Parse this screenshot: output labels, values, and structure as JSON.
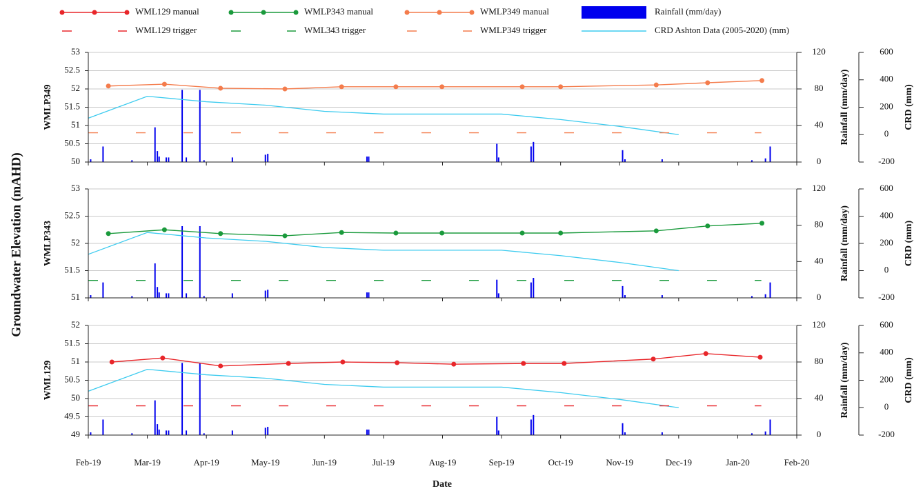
{
  "chart_data": {
    "type": "line",
    "y_label": "Groundwater Elevation (mAHD)",
    "x_label": "Date",
    "xlim": [
      0,
      12
    ],
    "xticks": [
      {
        "value": 0,
        "label": "Feb-19"
      },
      {
        "value": 1,
        "label": "Mar-19"
      },
      {
        "value": 2,
        "label": "Apr-19"
      },
      {
        "value": 3,
        "label": "May-19"
      },
      {
        "value": 4,
        "label": "Jun-19"
      },
      {
        "value": 5,
        "label": "Jul-19"
      },
      {
        "value": 6,
        "label": "Aug-19"
      },
      {
        "value": 7,
        "label": "Sep-19"
      },
      {
        "value": 8,
        "label": "Oct-19"
      },
      {
        "value": 9,
        "label": "Nov-19"
      },
      {
        "value": 10,
        "label": "Dec-19"
      },
      {
        "value": 11,
        "label": "Jan-20"
      },
      {
        "value": 12,
        "label": "Feb-20"
      }
    ],
    "y2_label": "Rainfall (mm/day)",
    "y2lim": [
      0,
      120
    ],
    "y2ticks": [
      0,
      40,
      80,
      120
    ],
    "y3_label": "CRD (mm)",
    "y3lim": [
      -200,
      600
    ],
    "y3ticks": [
      -200,
      0,
      200,
      400,
      600
    ],
    "grid": true,
    "rainfall": {
      "name": "Rainfall (mm/day)",
      "color": "#0000ee",
      "x": [
        0.04,
        0.25,
        0.74,
        1.13,
        1.17,
        1.2,
        1.32,
        1.36,
        1.59,
        1.66,
        1.89,
        1.96,
        2.44,
        3.0,
        3.04,
        4.72,
        4.75,
        6.92,
        6.95,
        7.5,
        7.54,
        9.05,
        9.09,
        9.72,
        11.24,
        11.47,
        11.55
      ],
      "values": [
        3,
        17,
        2,
        38,
        12,
        6,
        5,
        5,
        79,
        5,
        79,
        2,
        5,
        8,
        9,
        6,
        6,
        20,
        5,
        17,
        22,
        13,
        3,
        3,
        2,
        4,
        17
      ]
    },
    "crd": {
      "name": "CRD Ashton Data (2005-2020) (mm)",
      "color": "#3ccbef",
      "x": [
        0,
        1,
        2,
        3,
        4,
        5,
        6,
        7,
        8,
        9,
        10
      ],
      "values": [
        120,
        280,
        240,
        215,
        170,
        150,
        150,
        150,
        110,
        60,
        0
      ]
    },
    "panels": [
      {
        "label": "WMLP349",
        "ylim": [
          50,
          53
        ],
        "yticks": [
          50,
          50.5,
          51,
          51.5,
          52,
          52.5,
          53
        ],
        "series": [
          {
            "name": "WMLP349 manual",
            "color": "#f47c4c",
            "marker": "circle",
            "x": [
              0.34,
              1.29,
              2.24,
              3.33,
              4.29,
              5.21,
              5.99,
              7.35,
              8.0,
              9.62,
              10.49,
              11.41
            ],
            "values": [
              52.08,
              52.13,
              52.02,
              52.0,
              52.06,
              52.06,
              52.06,
              52.06,
              52.06,
              52.11,
              52.17,
              52.23
            ]
          },
          {
            "name": "WMLP349 trigger",
            "color": "#f47c4c",
            "dash": true,
            "x": [
              0,
              11.4
            ],
            "values": [
              50.8,
              50.8
            ]
          }
        ]
      },
      {
        "label": "WMLP343",
        "ylim": [
          51,
          53
        ],
        "yticks": [
          51,
          51.5,
          52,
          52.5,
          53
        ],
        "series": [
          {
            "name": "WMLP343 manual",
            "color": "#1a9a3c",
            "marker": "circle",
            "x": [
              0.34,
              1.29,
              2.24,
              3.33,
              4.29,
              5.21,
              5.99,
              7.35,
              8.0,
              9.62,
              10.49,
              11.41
            ],
            "values": [
              52.18,
              52.25,
              52.18,
              52.14,
              52.2,
              52.19,
              52.19,
              52.19,
              52.19,
              52.23,
              52.32,
              52.37
            ]
          },
          {
            "name": "WML343 trigger",
            "color": "#1a9a3c",
            "dash": true,
            "x": [
              0,
              11.4
            ],
            "values": [
              51.32,
              51.32
            ]
          }
        ]
      },
      {
        "label": "WML129",
        "ylim": [
          49,
          52
        ],
        "yticks": [
          49,
          49.5,
          50,
          50.5,
          51,
          51.5,
          52
        ],
        "series": [
          {
            "name": "WML129 manual",
            "color": "#e8262a",
            "marker": "circle",
            "x": [
              0.4,
              1.26,
              2.24,
              3.39,
              4.31,
              5.23,
              6.19,
              7.37,
              8.06,
              9.57,
              10.46,
              11.38
            ],
            "values": [
              51.0,
              51.11,
              50.89,
              50.96,
              51.0,
              50.98,
              50.94,
              50.96,
              50.96,
              51.08,
              51.23,
              51.13
            ]
          },
          {
            "name": "WML129 trigger",
            "color": "#e8262a",
            "dash": true,
            "x": [
              0,
              11.4
            ],
            "values": [
              49.8,
              49.8
            ]
          }
        ]
      }
    ]
  }
}
